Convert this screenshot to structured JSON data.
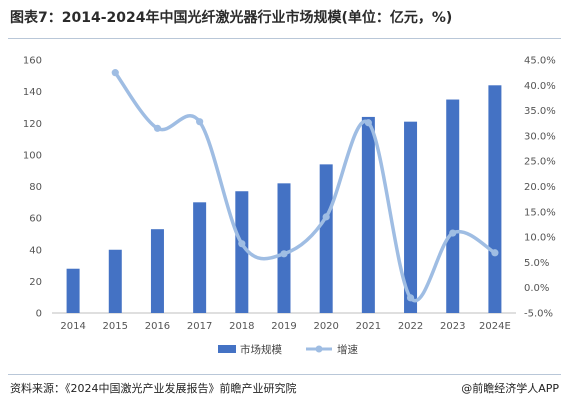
{
  "title": "图表7：2014-2024年中国光纤激光器行业市场规模(单位：亿元，%)",
  "source": "资料来源：《2024中国激光产业发展报告》前瞻产业研究院",
  "brand": "@前瞻经济学人APP",
  "colors": {
    "bar": "#4472c4",
    "line": "#9fbde3"
  },
  "chart_data": {
    "type": "bar",
    "categories": [
      "2014",
      "2015",
      "2016",
      "2017",
      "2018",
      "2019",
      "2020",
      "2021",
      "2022",
      "2023",
      "2024E"
    ],
    "y_left": {
      "ylim": [
        0,
        160
      ],
      "ticks": [
        "0",
        "20",
        "40",
        "60",
        "80",
        "100",
        "120",
        "140",
        "160"
      ]
    },
    "y_right": {
      "ylim": [
        -5,
        45
      ],
      "ticks": [
        "-5.0%",
        "0.0%",
        "5.0%",
        "10.0%",
        "15.0%",
        "20.0%",
        "25.0%",
        "30.0%",
        "35.0%",
        "40.0%",
        "45.0%"
      ]
    },
    "series": [
      {
        "name": "市场规模",
        "type": "bar",
        "axis": "left",
        "values": [
          28,
          40,
          53,
          70,
          77,
          82,
          94,
          124,
          121,
          135,
          144
        ]
      },
      {
        "name": "增速",
        "type": "line",
        "axis": "right",
        "values": [
          null,
          42.5,
          31.5,
          32.8,
          8.7,
          6.7,
          14.0,
          32.6,
          -2.0,
          10.8,
          6.9
        ]
      }
    ],
    "legend": "bottom-center",
    "grid": false
  }
}
